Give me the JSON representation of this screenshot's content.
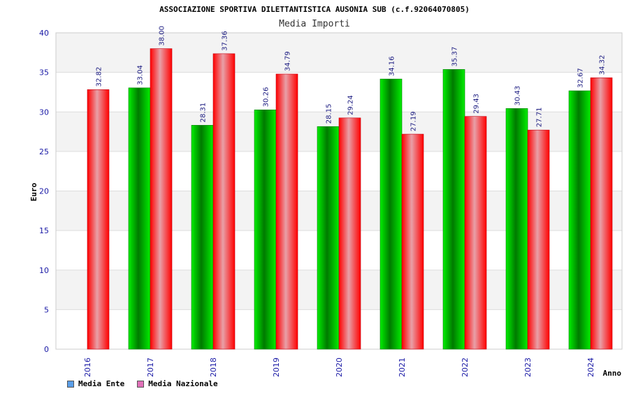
{
  "chart_data": {
    "type": "bar",
    "title": "ASSOCIAZIONE SPORTIVA DILETTANTISTICA AUSONIA SUB (c.f.92064070805)",
    "subtitle": "Media Importi",
    "xlabel": "Anno",
    "ylabel": "Euro",
    "ylim": [
      0,
      40
    ],
    "yticks": [
      0,
      5,
      10,
      15,
      20,
      25,
      30,
      35,
      40
    ],
    "grid": true,
    "legend_position": "bottom-left",
    "categories": [
      "2016",
      "2017",
      "2018",
      "2019",
      "2020",
      "2021",
      "2022",
      "2023",
      "2024"
    ],
    "series": [
      {
        "name": "Media Ente",
        "color": "#00cc00",
        "legend_color": "#5a9ee8",
        "values": [
          null,
          33.04,
          28.31,
          30.26,
          28.15,
          34.16,
          35.37,
          30.43,
          32.67
        ],
        "labels": [
          "",
          "33.04",
          "28.31",
          "30.26",
          "28.15",
          "34.16",
          "35.37",
          "30.43",
          "32.67"
        ]
      },
      {
        "name": "Media Nazionale",
        "color": "#ff1a2e",
        "legend_color": "#e070b8",
        "values": [
          32.82,
          38.0,
          37.36,
          34.79,
          29.24,
          27.19,
          29.43,
          27.71,
          34.32
        ],
        "labels": [
          "32.82",
          "38.00",
          "37.36",
          "34.79",
          "29.24",
          "27.19",
          "29.43",
          "27.71",
          "34.32"
        ]
      }
    ]
  }
}
